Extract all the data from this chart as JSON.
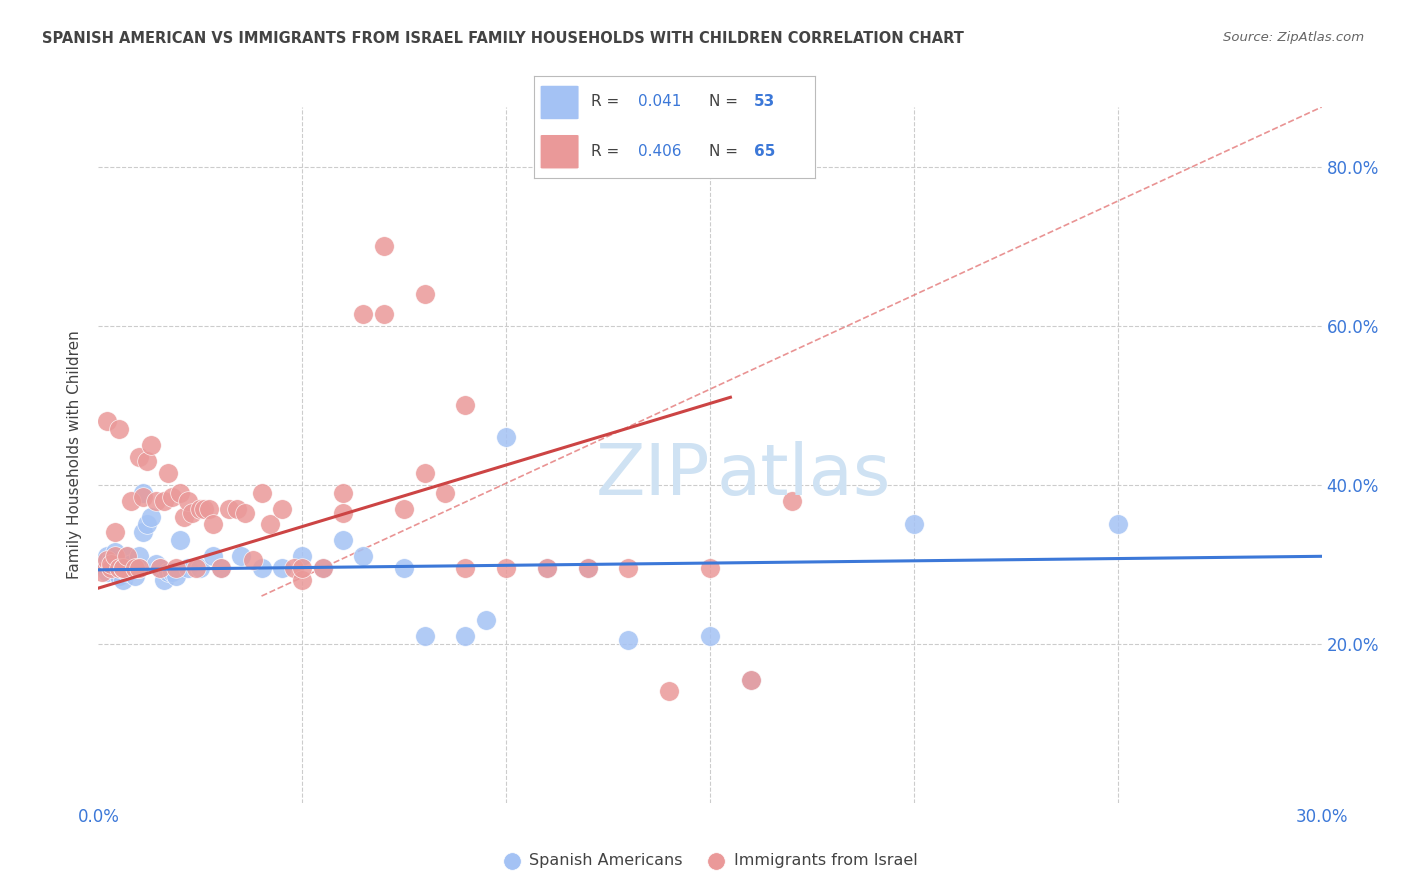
{
  "title": "SPANISH AMERICAN VS IMMIGRANTS FROM ISRAEL FAMILY HOUSEHOLDS WITH CHILDREN CORRELATION CHART",
  "source": "Source: ZipAtlas.com",
  "ylabel": "Family Households with Children",
  "legend_label1": "Spanish Americans",
  "legend_label2": "Immigrants from Israel",
  "blue_color": "#a4c2f4",
  "pink_color": "#ea9999",
  "line_blue": "#3c78d8",
  "line_pink": "#cc4444",
  "ref_line_color": "#e06666",
  "background_color": "#ffffff",
  "grid_color": "#cccccc",
  "title_color": "#434343",
  "axis_label_color": "#3c78d8",
  "text_color": "#434343",
  "xlim": [
    0.0,
    0.3
  ],
  "ylim": [
    0.0,
    0.875
  ],
  "watermark_color": "#cfe2f3",
  "legend_box_color": "#f3f3f3",
  "blue_scatter_x": [
    0.001,
    0.002,
    0.002,
    0.003,
    0.003,
    0.004,
    0.004,
    0.005,
    0.005,
    0.006,
    0.006,
    0.007,
    0.007,
    0.008,
    0.008,
    0.009,
    0.009,
    0.01,
    0.01,
    0.011,
    0.011,
    0.012,
    0.013,
    0.014,
    0.015,
    0.016,
    0.017,
    0.018,
    0.019,
    0.02,
    0.022,
    0.025,
    0.028,
    0.03,
    0.035,
    0.04,
    0.045,
    0.05,
    0.055,
    0.06,
    0.065,
    0.075,
    0.08,
    0.09,
    0.095,
    0.1,
    0.11,
    0.12,
    0.13,
    0.15,
    0.16,
    0.2,
    0.25
  ],
  "blue_scatter_y": [
    0.3,
    0.31,
    0.29,
    0.295,
    0.305,
    0.3,
    0.315,
    0.285,
    0.295,
    0.28,
    0.3,
    0.31,
    0.29,
    0.295,
    0.3,
    0.295,
    0.285,
    0.31,
    0.295,
    0.39,
    0.34,
    0.35,
    0.36,
    0.3,
    0.295,
    0.28,
    0.29,
    0.29,
    0.285,
    0.33,
    0.295,
    0.295,
    0.31,
    0.295,
    0.31,
    0.295,
    0.295,
    0.31,
    0.295,
    0.33,
    0.31,
    0.295,
    0.21,
    0.21,
    0.23,
    0.46,
    0.295,
    0.295,
    0.205,
    0.21,
    0.155,
    0.35,
    0.35
  ],
  "pink_scatter_x": [
    0.001,
    0.002,
    0.002,
    0.003,
    0.003,
    0.004,
    0.004,
    0.005,
    0.005,
    0.006,
    0.006,
    0.007,
    0.008,
    0.009,
    0.01,
    0.01,
    0.011,
    0.012,
    0.013,
    0.014,
    0.015,
    0.016,
    0.017,
    0.018,
    0.019,
    0.02,
    0.021,
    0.022,
    0.023,
    0.024,
    0.025,
    0.026,
    0.027,
    0.028,
    0.03,
    0.032,
    0.034,
    0.036,
    0.038,
    0.04,
    0.042,
    0.045,
    0.048,
    0.05,
    0.055,
    0.06,
    0.065,
    0.07,
    0.075,
    0.08,
    0.085,
    0.09,
    0.1,
    0.11,
    0.12,
    0.13,
    0.14,
    0.15,
    0.16,
    0.17,
    0.05,
    0.06,
    0.07,
    0.08,
    0.09
  ],
  "pink_scatter_y": [
    0.29,
    0.48,
    0.305,
    0.295,
    0.3,
    0.31,
    0.34,
    0.295,
    0.47,
    0.295,
    0.295,
    0.31,
    0.38,
    0.295,
    0.435,
    0.295,
    0.385,
    0.43,
    0.45,
    0.38,
    0.295,
    0.38,
    0.415,
    0.385,
    0.295,
    0.39,
    0.36,
    0.38,
    0.365,
    0.295,
    0.37,
    0.37,
    0.37,
    0.35,
    0.295,
    0.37,
    0.37,
    0.365,
    0.305,
    0.39,
    0.35,
    0.37,
    0.295,
    0.28,
    0.295,
    0.365,
    0.615,
    0.615,
    0.37,
    0.415,
    0.39,
    0.295,
    0.295,
    0.295,
    0.295,
    0.295,
    0.14,
    0.295,
    0.155,
    0.38,
    0.295,
    0.39,
    0.7,
    0.64,
    0.5
  ]
}
